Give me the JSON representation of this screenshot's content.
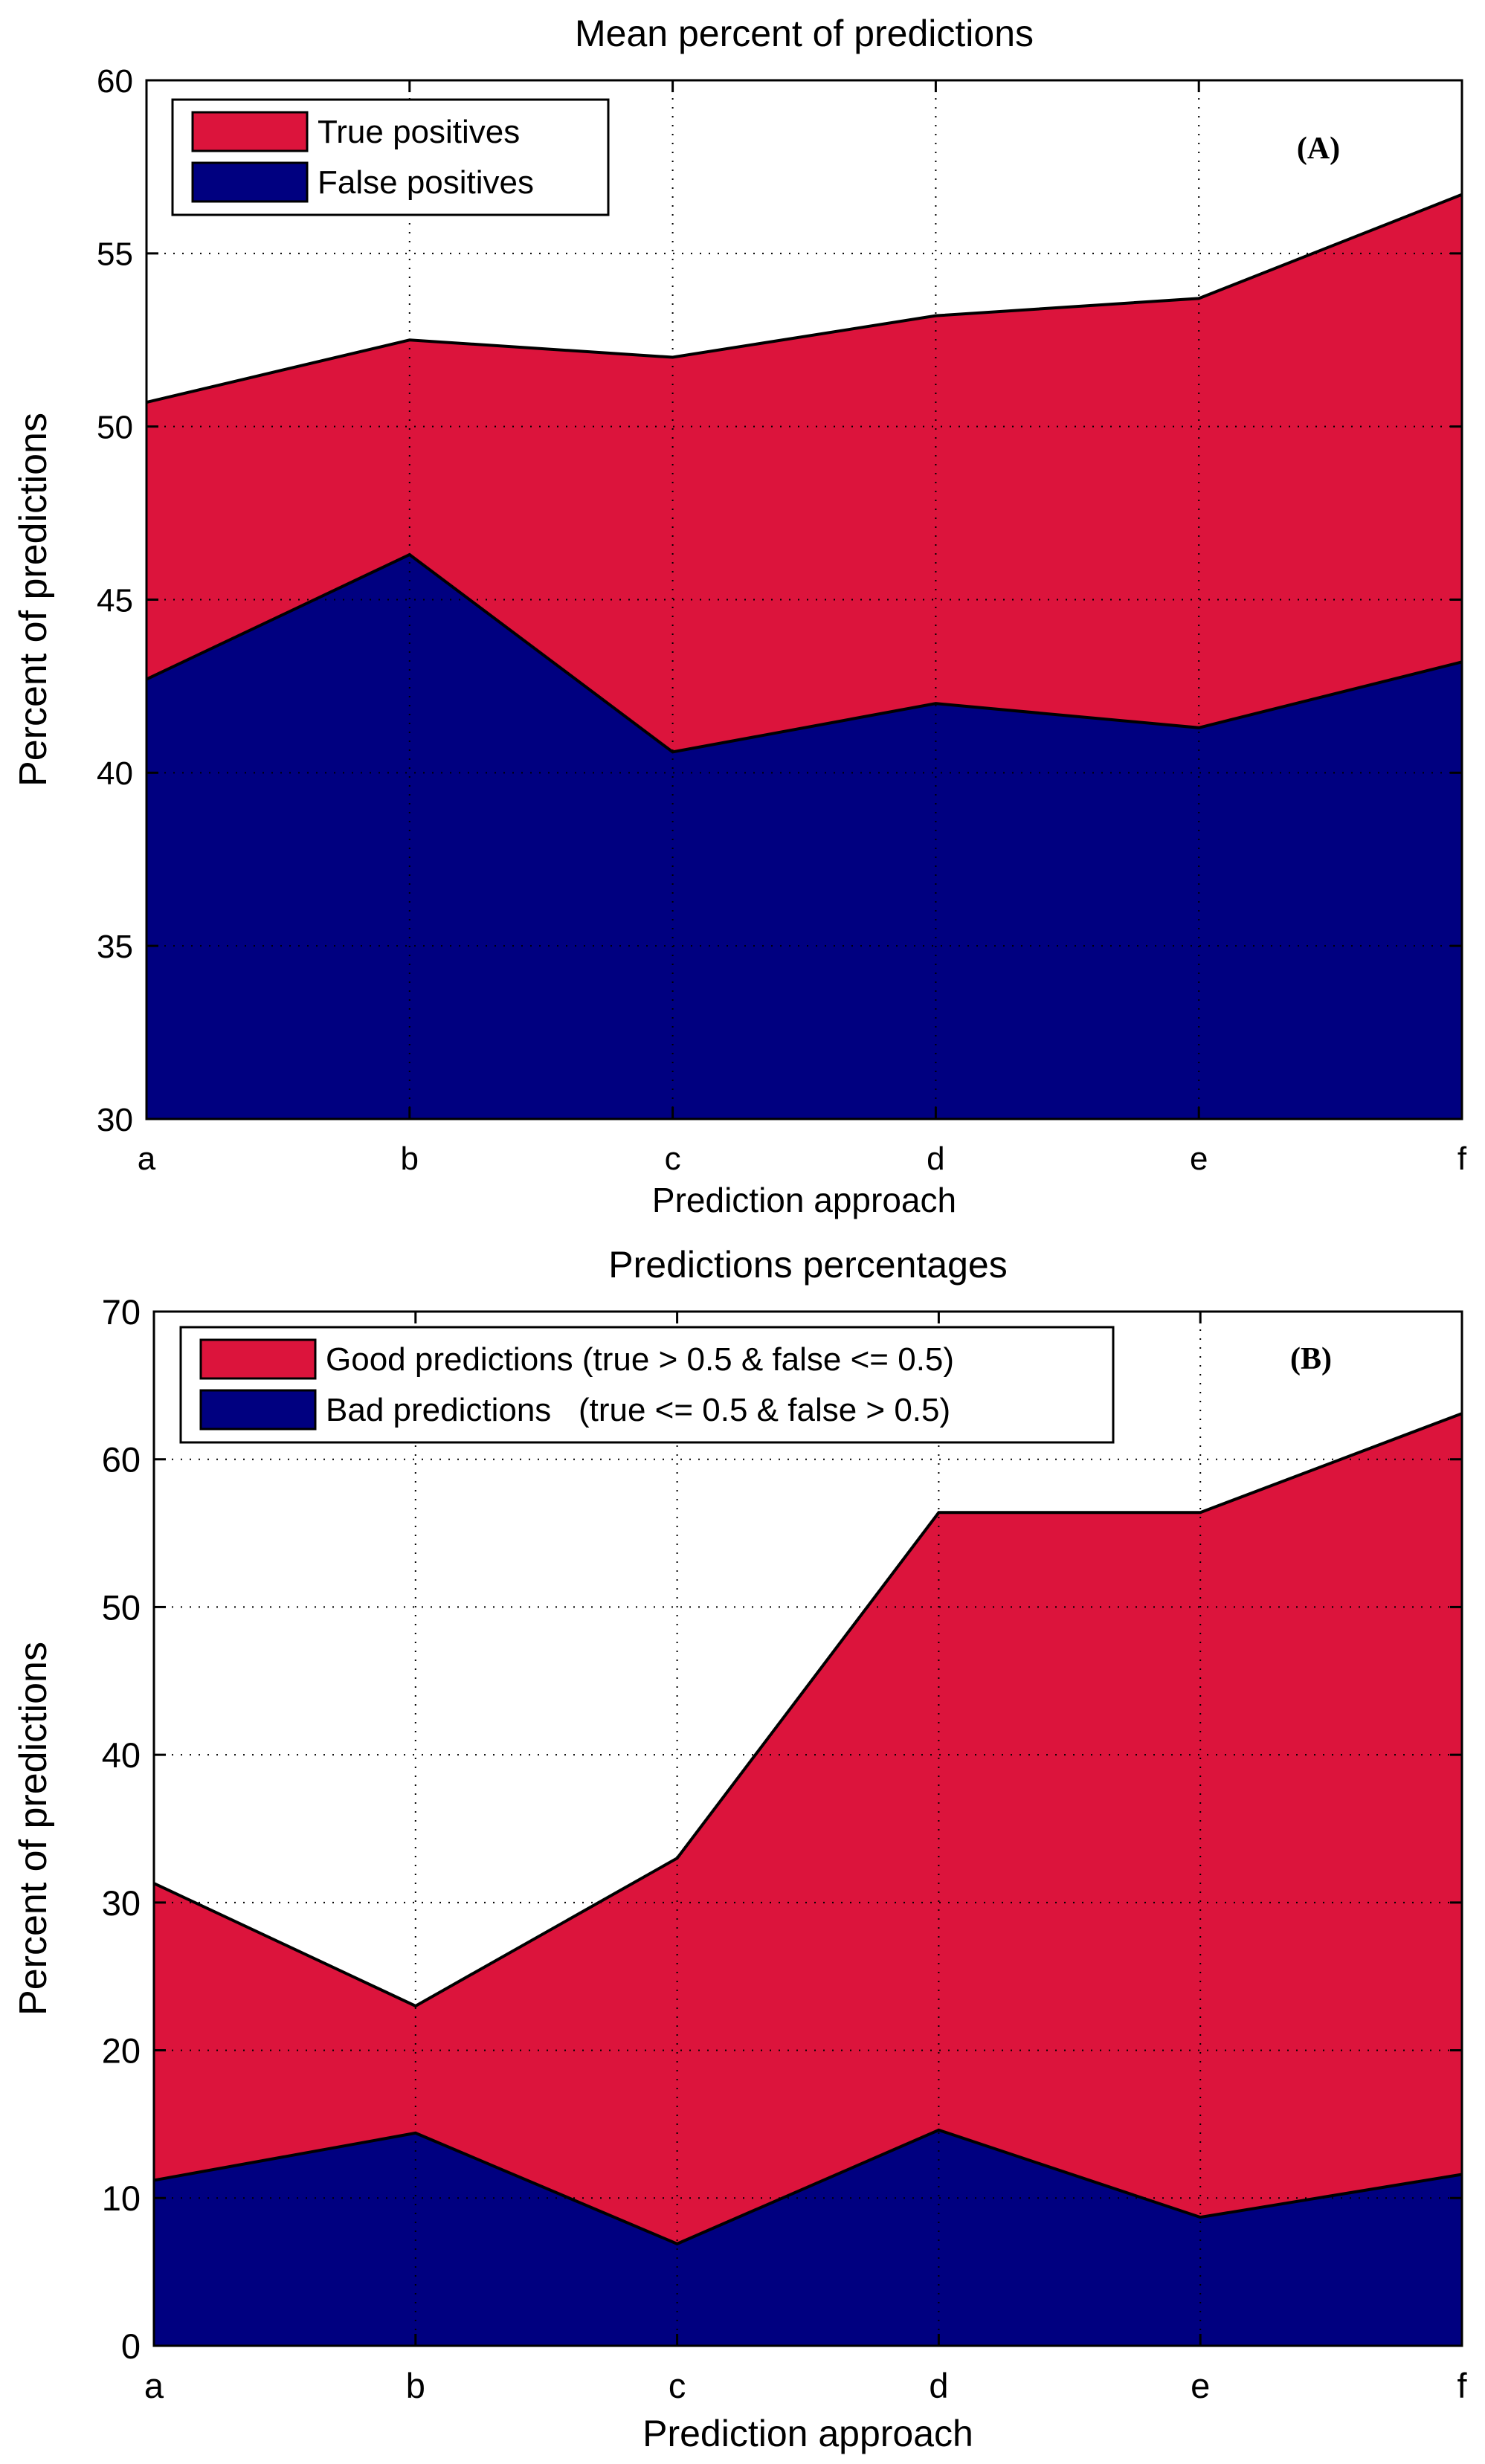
{
  "chart_data": [
    {
      "type": "area",
      "stacked": false,
      "title": "Mean percent of predictions",
      "panel_label": "(A)",
      "xlabel": "Prediction approach",
      "ylabel": "Percent of predictions",
      "categories": [
        "a",
        "b",
        "c",
        "d",
        "e",
        "f"
      ],
      "ylim": [
        30,
        60
      ],
      "yticks": [
        30,
        35,
        40,
        45,
        50,
        55,
        60
      ],
      "grid": true,
      "legend_position": "top-left",
      "series": [
        {
          "name": "True positives",
          "color": "#DC143C",
          "values": [
            50.7,
            52.5,
            52.0,
            53.2,
            53.7,
            56.7
          ]
        },
        {
          "name": "False positives",
          "color": "#000080",
          "values": [
            42.7,
            46.3,
            40.6,
            42.0,
            41.3,
            43.2
          ]
        }
      ]
    },
    {
      "type": "area",
      "stacked": false,
      "title": "Predictions percentages",
      "panel_label": "(B)",
      "xlabel": "Prediction approach",
      "ylabel": "Percent of predictions",
      "categories": [
        "a",
        "b",
        "c",
        "d",
        "e",
        "f"
      ],
      "ylim": [
        0,
        70
      ],
      "yticks": [
        0,
        10,
        20,
        30,
        40,
        50,
        60,
        70
      ],
      "grid": true,
      "legend_position": "top-left",
      "series": [
        {
          "name": "Good predictions (true > 0.5 & false <= 0.5)",
          "color": "#DC143C",
          "values": [
            31.3,
            23.0,
            33.0,
            56.4,
            56.4,
            63.1
          ]
        },
        {
          "name": "Bad predictions   (true <= 0.5 & false > 0.5)",
          "color": "#000080",
          "values": [
            11.2,
            14.4,
            6.9,
            14.6,
            8.7,
            11.6
          ]
        }
      ]
    }
  ]
}
